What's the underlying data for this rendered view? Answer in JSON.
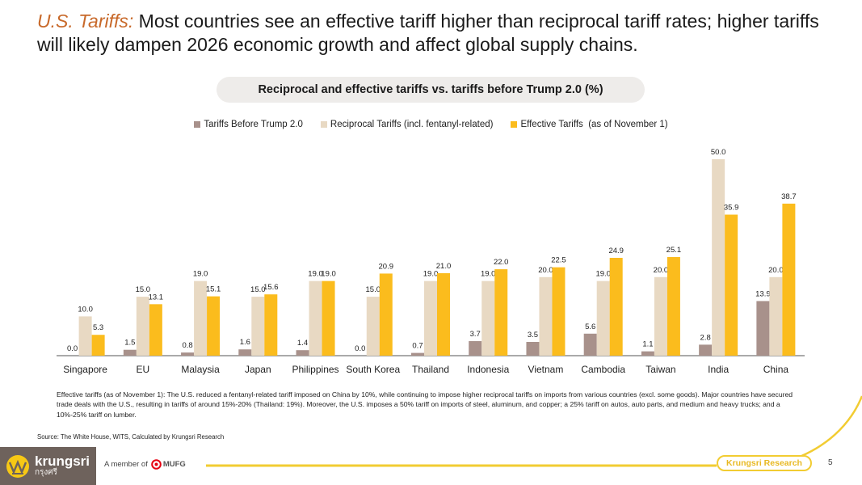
{
  "header": {
    "title_accent": "U.S. Tariffs:",
    "title_rest": " Most countries see an effective tariff higher than reciprocal tariff rates; higher tariffs will likely dampen 2026 economic growth and affect global supply chains."
  },
  "chart_data": {
    "type": "bar",
    "title": "Reciprocal and effective tariffs vs. tariffs before Trump 2.0 (%)",
    "xlabel": "",
    "ylabel": "",
    "ylim": [
      0,
      52
    ],
    "grid": false,
    "legend_position": "top",
    "categories": [
      "Singapore",
      "EU",
      "Malaysia",
      "Japan",
      "Philippines",
      "South Korea",
      "Thailand",
      "Indonesia",
      "Vietnam",
      "Cambodia",
      "Taiwan",
      "India",
      "China"
    ],
    "series": [
      {
        "name": "Tariffs Before Trump 2.0",
        "color": "#a8918b",
        "values": [
          0.0,
          1.5,
          0.8,
          1.6,
          1.4,
          0.0,
          0.7,
          3.7,
          3.5,
          5.6,
          1.1,
          2.8,
          13.9
        ],
        "labels": [
          "0.0",
          "1.5",
          "0.8",
          "1.6",
          "1.4",
          "0.0",
          "0.7",
          "3.7",
          "3.5",
          "5.6",
          "1.1",
          "2.8",
          "13.9"
        ]
      },
      {
        "name": "Reciprocal Tariffs (incl. fentanyl-related)",
        "color": "#e8d9c3",
        "values": [
          10.0,
          15.0,
          19.0,
          15.0,
          19.0,
          15.0,
          19.0,
          19.0,
          20.0,
          19.0,
          20.0,
          50.0,
          20.0
        ],
        "labels": [
          "10.0",
          "15.0",
          "19.0",
          "15.0",
          "19.0",
          "15.0",
          "19.0",
          "19.0",
          "20.0",
          "19.0",
          "20.0",
          "50.0",
          "20.0"
        ]
      },
      {
        "name": "Effective Tariffs  (as of November 1)",
        "color": "#fbbc1d",
        "values": [
          5.3,
          13.1,
          15.1,
          15.6,
          19.0,
          20.9,
          21.0,
          22.0,
          22.5,
          24.9,
          25.1,
          35.9,
          38.7
        ],
        "labels": [
          "5.3",
          "13.1",
          "15.1",
          "15.6",
          "19.0",
          "20.9",
          "21.0",
          "22.0",
          "22.5",
          "24.9",
          "25.1",
          "35.9",
          "38.7"
        ]
      }
    ]
  },
  "note": "Effective tariffs (as of November 1): The U.S. reduced a fentanyl-related tariff imposed on China by 10%, while continuing to impose higher reciprocal tariffs on imports from various countries (excl. some goods). Major countries have secured trade deals with the U.S., resulting in tariffs of around 15%-20% (Thailand: 19%). Moreover, the U.S. imposes a 50% tariff on imports of steel, aluminum, and copper; a 25% tariff on autos, auto parts, and medium and heavy trucks; and a 10%-25% tariff on lumber.",
  "source": "Source: The White House, WITS, Calculated by Krungsri Research",
  "footer": {
    "logo_en": "krungsri",
    "logo_th": "กรุงศรี",
    "member_of": "A member of",
    "mufg": "MUFG",
    "research_label": "Krungsri Research",
    "page_number": "5",
    "accent_color": "#f2cc32"
  }
}
